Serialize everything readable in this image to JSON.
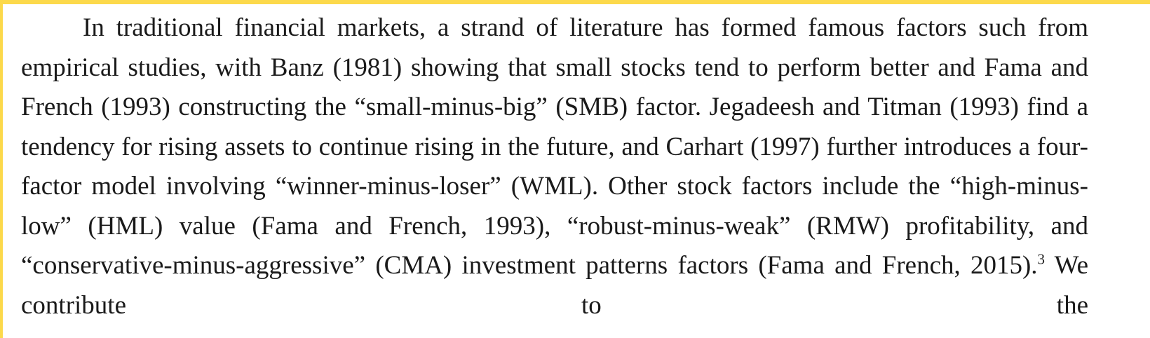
{
  "page": {
    "accent_color": "#FCD94B"
  },
  "paragraph": {
    "text_before_footnote": "In traditional financial markets, a strand of literature has formed famous factors such from empirical studies, with Banz (1981) showing that small stocks tend to perform better and Fama and French (1993) constructing the “small-minus-big” (SMB) factor. Jegadeesh and Titman (1993) find a tendency for rising assets to continue rising in the future, and Carhart (1997) further introduces a four-factor model involving “winner-minus-loser” (WML). Other stock factors include the “high-minus-low” (HML) value (Fama and French, 1993), “robust-minus-weak” (RMW) profitability, and “conservative-minus-aggressive” (CMA) investment patterns factors (Fama and French, 2015).",
    "footnote_marker": "3",
    "text_after_footnote": " We contribute to the"
  }
}
